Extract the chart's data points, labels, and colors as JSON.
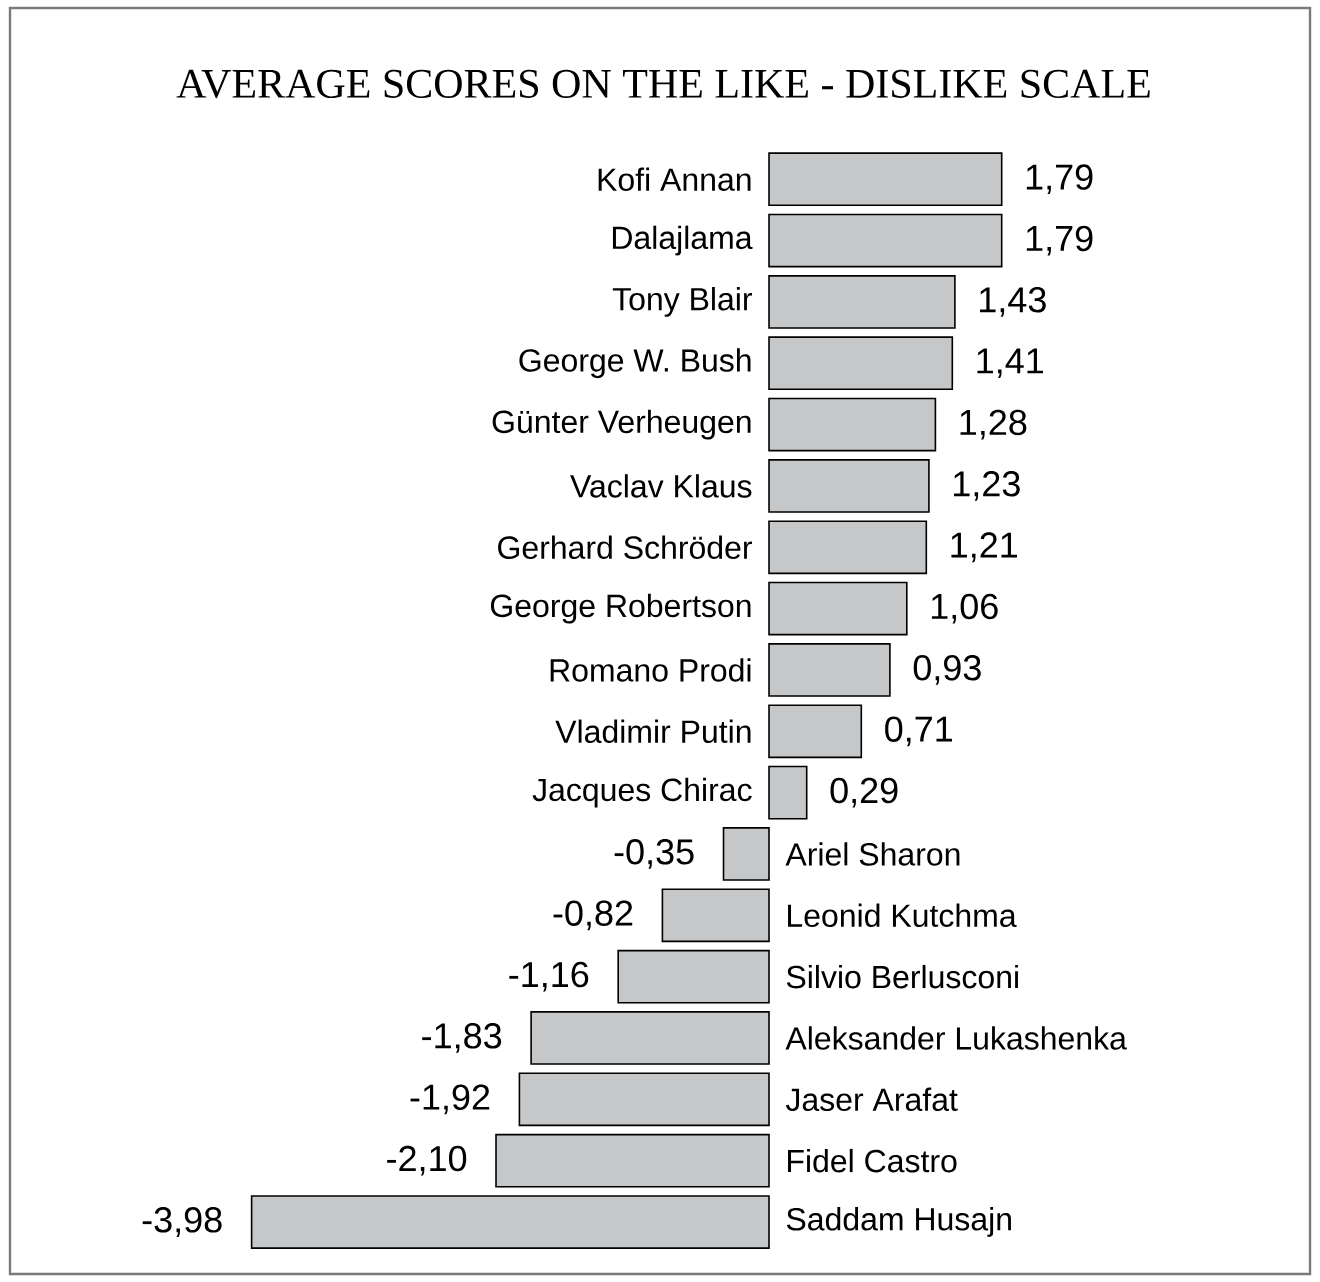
{
  "chart_data": {
    "type": "bar",
    "orientation": "horizontal",
    "title": "AVERAGE SCORES ON THE LIKE - DISLIKE SCALE",
    "categories": [
      "Kofi Annan",
      "Dalajlama",
      "Tony Blair",
      "George W. Bush",
      "Günter Verheugen",
      "Vaclav Klaus",
      "Gerhard Schröder",
      "George Robertson",
      "Romano Prodi",
      "Vladimir Putin",
      "Jacques Chirac",
      "Ariel Sharon",
      "Leonid Kutchma",
      "Silvio Berlusconi",
      "Aleksander Lukashenka",
      "Jaser Arafat",
      "Fidel Castro",
      "Saddam Husajn"
    ],
    "values": [
      1.79,
      1.79,
      1.43,
      1.41,
      1.28,
      1.23,
      1.21,
      1.06,
      0.93,
      0.71,
      0.29,
      -0.35,
      -0.82,
      -1.16,
      -1.83,
      -1.92,
      -2.1,
      -3.98
    ],
    "value_labels": [
      "1,79",
      "1,79",
      "1,43",
      "1,41",
      "1,28",
      "1,23",
      "1,21",
      "1,06",
      "0,93",
      "0,71",
      "0,29",
      "-0,35",
      "-0,82",
      "-1,16",
      "-1,83",
      "-1,92",
      "-2,10",
      "-3,98"
    ],
    "color": "#c6c7c9"
  }
}
